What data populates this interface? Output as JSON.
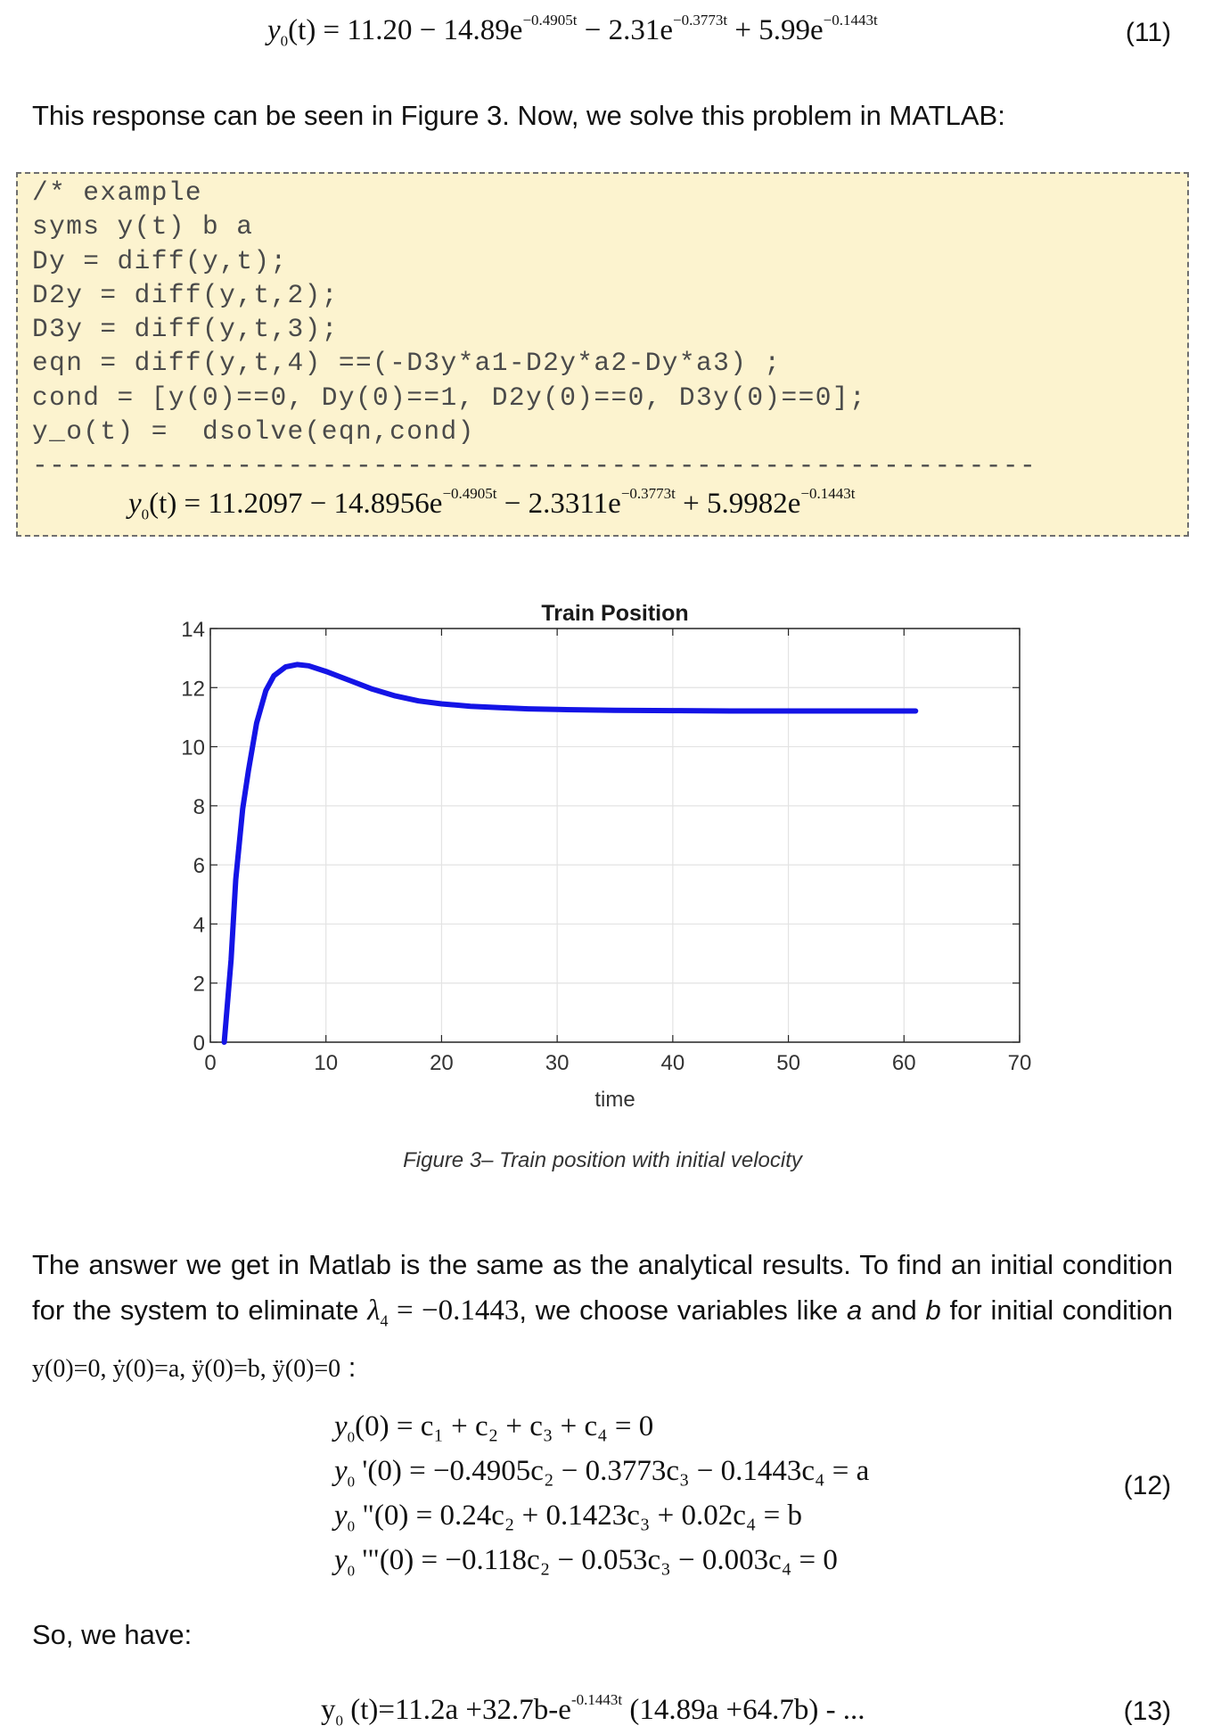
{
  "eq11": {
    "lhs": "y",
    "lhs_sub": "0",
    "lhs_arg": "(t) = ",
    "body": "11.20 − 14.89e",
    "exp1": "−0.4905t",
    "mid": " − 2.31e",
    "exp2": "−0.3773t",
    "tail": " + 5.99e",
    "exp3": "−0.1443t",
    "number": "(11)"
  },
  "para1": "This response can be seen in Figure 3. Now, we solve this problem in MATLAB:",
  "code": {
    "lines": [
      "/* example",
      "syms y(t) b a",
      "Dy = diff(y,t);",
      "D2y = diff(y,t,2);",
      "D3y = diff(y,t,3);",
      "eqn = diff(y,t,4) ==(-D3y*a1-D2y*a2-Dy*a3) ;",
      "cond = [y(0)==0, Dy(0)==1, D2y(0)==0, D3y(0)==0];",
      "y_o(t) =  dsolve(eqn,cond)",
      "-----------------------------------------------------------"
    ],
    "result": {
      "lhs": "y",
      "lhs_sub": "0",
      "lhs_arg": "(t) = ",
      "body": "11.2097 − 14.8956e",
      "exp1": "−0.4905t",
      "mid": " − 2.3311e",
      "exp2": "−0.3773t",
      "tail": " + 5.9982e",
      "exp3": "−0.1443t"
    }
  },
  "chart_data": {
    "type": "line",
    "title": "Train Position",
    "xlabel": "time",
    "ylabel": "",
    "xlim": [
      0,
      70
    ],
    "ylim": [
      0,
      14
    ],
    "xticks": [
      0,
      10,
      20,
      30,
      40,
      50,
      60,
      70
    ],
    "yticks": [
      0,
      2,
      4,
      6,
      8,
      10,
      12,
      14
    ],
    "grid": true,
    "series_color": "#1414e6",
    "series": [
      {
        "x": [
          1.2,
          1.8,
          2.2,
          2.8,
          3.3,
          4.0,
          4.8,
          5.5,
          6.5,
          7.5,
          8.5,
          10,
          12,
          14,
          16,
          18,
          20,
          22.5,
          25,
          27.5,
          30,
          35,
          40,
          45,
          50,
          55,
          61
        ],
        "y": [
          0,
          2.8,
          5.5,
          7.9,
          9.2,
          10.8,
          11.9,
          12.4,
          12.7,
          12.78,
          12.74,
          12.55,
          12.25,
          11.95,
          11.72,
          11.55,
          11.45,
          11.37,
          11.32,
          11.28,
          11.26,
          11.23,
          11.22,
          11.21,
          11.21,
          11.21,
          11.21
        ]
      }
    ]
  },
  "figure_caption": "Figure 3– Train position with initial velocity",
  "para2": {
    "text1": "The answer we get in Matlab is the same as the analytical results. To find an initial condition for the system to eliminate ",
    "lambda": "λ",
    "lambda_sub": "4",
    "lambda_val": " = −0.1443",
    "text2": ", we choose variables like ",
    "var_a": "a",
    "text3": " and ",
    "var_b": "b",
    "text4": " for initial condition ",
    "cond": "y(0)=0, ẏ(0)=a, ÿ(0)=b, ÿ(0)=0",
    "text5": " :"
  },
  "eq12": {
    "lines": [
      {
        "y": "y",
        "sub": "0",
        "rest": "(0) = c₁ + c₂ + c₃ + c₄ = 0"
      },
      {
        "y": "y",
        "sub": "0",
        "rest": " '(0) = −0.4905c₂ − 0.3773c₃ − 0.1443c₄ = a"
      },
      {
        "y": "y",
        "sub": "0",
        "rest": " \"(0) = 0.24c₂ + 0.1423c₃ + 0.02c₄ = b"
      },
      {
        "y": "y",
        "sub": "0",
        "rest": " '\"(0) = −0.118c₂ − 0.053c₃ − 0.003c₄ = 0"
      }
    ],
    "number": "(12)"
  },
  "para3": "So, we have:",
  "eq13": {
    "lhs": "y",
    "lhs_sub": "0",
    "body": " (t)=11.2a +32.7b-e",
    "exp": "-0.1443t",
    "tail": " (14.89a +64.7b) - ...",
    "number": "(13)"
  }
}
